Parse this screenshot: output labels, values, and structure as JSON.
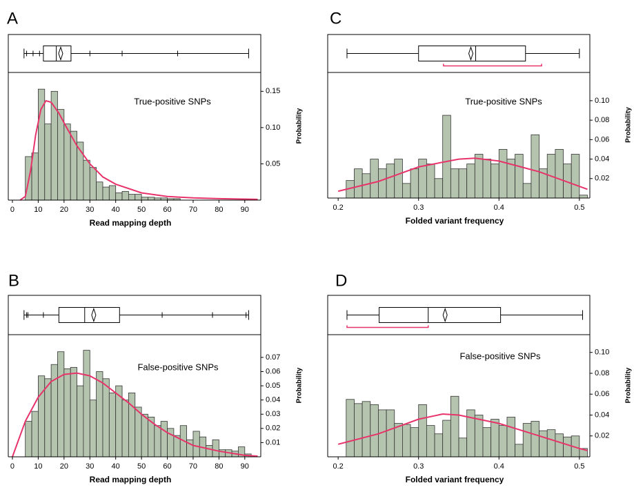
{
  "chart_data": [
    {
      "type": "histogram",
      "panel": "A",
      "annotation": "True-positive SNPs",
      "x_label": "Read mapping depth",
      "y_label": "Probability",
      "bins": [
        5,
        7.5,
        10,
        12.5,
        15,
        17.5,
        20,
        22.5,
        25,
        27.5,
        30,
        32.5,
        35,
        37.5,
        40,
        42.5,
        45,
        47.5,
        50,
        52.5,
        55,
        57.5,
        60,
        62.5,
        65
      ],
      "values": [
        0.06,
        0.065,
        0.153,
        0.105,
        0.15,
        0.125,
        0.105,
        0.095,
        0.08,
        0.055,
        0.045,
        0.025,
        0.018,
        0.02,
        0.01,
        0.012,
        0.008,
        0.008,
        0.004,
        0.004,
        0.003,
        0.003,
        0.002,
        0.002
      ],
      "color": "#b5c4ae",
      "curve": {
        "color": "#e8336a",
        "x": [
          3,
          5,
          7,
          9,
          11,
          13,
          15,
          18,
          21,
          25,
          30,
          35,
          40,
          50,
          60,
          70,
          80,
          95
        ],
        "y": [
          0,
          0.005,
          0.04,
          0.09,
          0.125,
          0.137,
          0.135,
          0.12,
          0.1,
          0.075,
          0.05,
          0.032,
          0.022,
          0.01,
          0.005,
          0.003,
          0.002,
          0.001
        ]
      },
      "box": {
        "min": 4.5,
        "q1": 12,
        "median": 17,
        "q3": 22.7,
        "max": 91.5,
        "mean": 18.7,
        "quantiles": [
          5.5,
          8,
          10.5,
          30,
          42.5,
          64
        ]
      },
      "xlim": [
        -1.6,
        96.2
      ],
      "xticks": [
        0,
        10,
        20,
        30,
        40,
        50,
        60,
        70,
        80,
        90
      ],
      "ylim": [
        0,
        0.176
      ],
      "yticks": [
        0.05,
        {
          "value": 0.1,
          "label": "0.10"
        },
        0.15
      ]
    },
    {
      "type": "histogram",
      "panel": "C",
      "annotation": "True-positive SNPs",
      "x_label": "Folded variant frequency",
      "y_label": "Probability",
      "bins": [
        0.21,
        0.22,
        0.23,
        0.24,
        0.25,
        0.26,
        0.27,
        0.28,
        0.29,
        0.3,
        0.31,
        0.32,
        0.33,
        0.34,
        0.35,
        0.36,
        0.37,
        0.38,
        0.39,
        0.4,
        0.41,
        0.42,
        0.43,
        0.44,
        0.45,
        0.46,
        0.47,
        0.48,
        0.49,
        0.5,
        0.51
      ],
      "values": [
        0.018,
        0.03,
        0.025,
        0.04,
        0.03,
        0.035,
        0.04,
        0.015,
        0.03,
        0.04,
        0.035,
        0.02,
        0.085,
        0.03,
        0.03,
        0.035,
        0.045,
        0.04,
        0.035,
        0.05,
        0.04,
        0.045,
        0.015,
        0.065,
        0.03,
        0.045,
        0.05,
        0.035,
        0.045,
        0.003
      ],
      "color": "#b5c4ae",
      "curve": {
        "color": "#e8336a",
        "x": [
          0.2,
          0.25,
          0.3,
          0.35,
          0.37,
          0.4,
          0.45,
          0.5,
          0.51
        ],
        "y": [
          0.007,
          0.017,
          0.032,
          0.04,
          0.041,
          0.038,
          0.027,
          0.012,
          0.009
        ]
      },
      "box": {
        "min": 0.211,
        "q1": 0.3,
        "median": 0.371,
        "q3": 0.433,
        "max": 0.5,
        "mean": 0.365,
        "shortest_half": [
          0.331,
          0.453
        ]
      },
      "xlim": [
        0.187,
        0.513
      ],
      "xticks": [
        0.2,
        0.3,
        0.4,
        0.5
      ],
      "ylim": [
        0,
        0.129
      ],
      "yticks": [
        0.02,
        0.04,
        0.06,
        0.08,
        {
          "value": 0.1,
          "label": "0.10"
        }
      ]
    },
    {
      "type": "histogram",
      "panel": "B",
      "annotation": "False-positive SNPs",
      "x_label": "Read mapping depth",
      "y_label": "Probability",
      "bins": [
        5,
        7.5,
        10,
        12.5,
        15,
        17.5,
        20,
        22.5,
        25,
        27.5,
        30,
        32.5,
        35,
        37.5,
        40,
        42.5,
        45,
        47.5,
        50,
        52.5,
        55,
        57.5,
        60,
        62.5,
        65,
        67.5,
        70,
        72.5,
        75,
        77.5,
        80,
        82.5,
        85,
        87.5,
        90,
        92.5
      ],
      "values": [
        0.025,
        0.032,
        0.057,
        0.055,
        0.065,
        0.074,
        0.062,
        0.063,
        0.05,
        0.075,
        0.04,
        0.06,
        0.055,
        0.045,
        0.05,
        0.04,
        0.045,
        0.035,
        0.03,
        0.028,
        0.022,
        0.025,
        0.02,
        0.015,
        0.022,
        0.012,
        0.018,
        0.014,
        0.008,
        0.012,
        0.005,
        0.005,
        0.004,
        0.007,
        0.002
      ],
      "color": "#b5c4ae",
      "curve": {
        "color": "#e8336a",
        "x": [
          0,
          5,
          10,
          15,
          20,
          25,
          30,
          35,
          40,
          45,
          50,
          55,
          60,
          70,
          80,
          90,
          95
        ],
        "y": [
          0,
          0.025,
          0.042,
          0.053,
          0.058,
          0.059,
          0.057,
          0.052,
          0.045,
          0.038,
          0.03,
          0.023,
          0.017,
          0.008,
          0.004,
          0.001,
          0.0005
        ]
      },
      "box": {
        "min": 4.5,
        "q1": 18,
        "median": 28,
        "q3": 41.5,
        "max": 91.5,
        "mean": 31.5,
        "quantiles": [
          5.5,
          6,
          12,
          58,
          77.5,
          90.5
        ]
      },
      "xlim": [
        -1.6,
        96.2
      ],
      "xticks": [
        0,
        10,
        20,
        30,
        40,
        50,
        60,
        70,
        80,
        90
      ],
      "ylim": [
        0,
        0.086
      ],
      "yticks": [
        0.01,
        0.02,
        0.03,
        0.04,
        0.05,
        0.06,
        0.07
      ]
    },
    {
      "type": "histogram",
      "panel": "D",
      "annotation": "False-positive SNPs",
      "x_label": "Folded variant frequency",
      "y_label": "Probability",
      "bins": [
        0.21,
        0.22,
        0.23,
        0.24,
        0.25,
        0.26,
        0.27,
        0.28,
        0.29,
        0.3,
        0.31,
        0.32,
        0.33,
        0.34,
        0.35,
        0.36,
        0.37,
        0.38,
        0.39,
        0.4,
        0.41,
        0.42,
        0.43,
        0.44,
        0.45,
        0.46,
        0.47,
        0.48,
        0.49,
        0.5,
        0.51
      ],
      "values": [
        0.055,
        0.051,
        0.053,
        0.05,
        0.045,
        0.045,
        0.032,
        0.031,
        0.028,
        0.05,
        0.03,
        0.022,
        0.035,
        0.058,
        0.018,
        0.045,
        0.04,
        0.028,
        0.036,
        0.03,
        0.038,
        0.012,
        0.032,
        0.034,
        0.025,
        0.026,
        0.022,
        0.019,
        0.02,
        0.008
      ],
      "color": "#b5c4ae",
      "curve": {
        "color": "#e8336a",
        "x": [
          0.2,
          0.25,
          0.3,
          0.33,
          0.35,
          0.4,
          0.45,
          0.5,
          0.51
        ],
        "y": [
          0.012,
          0.022,
          0.036,
          0.041,
          0.04,
          0.032,
          0.02,
          0.008,
          0.006
        ]
      },
      "box": {
        "min": 0.211,
        "q1": 0.251,
        "median": 0.312,
        "q3": 0.402,
        "max": 0.504,
        "mean": 0.333,
        "shortest_half": [
          0.211,
          0.312
        ]
      },
      "xlim": [
        0.187,
        0.513
      ],
      "xticks": [
        0.2,
        0.3,
        0.4,
        0.5
      ],
      "ylim": [
        0,
        0.117
      ],
      "yticks": [
        0.02,
        0.04,
        0.06,
        0.08,
        {
          "value": 0.1,
          "label": "0.10"
        }
      ]
    }
  ]
}
